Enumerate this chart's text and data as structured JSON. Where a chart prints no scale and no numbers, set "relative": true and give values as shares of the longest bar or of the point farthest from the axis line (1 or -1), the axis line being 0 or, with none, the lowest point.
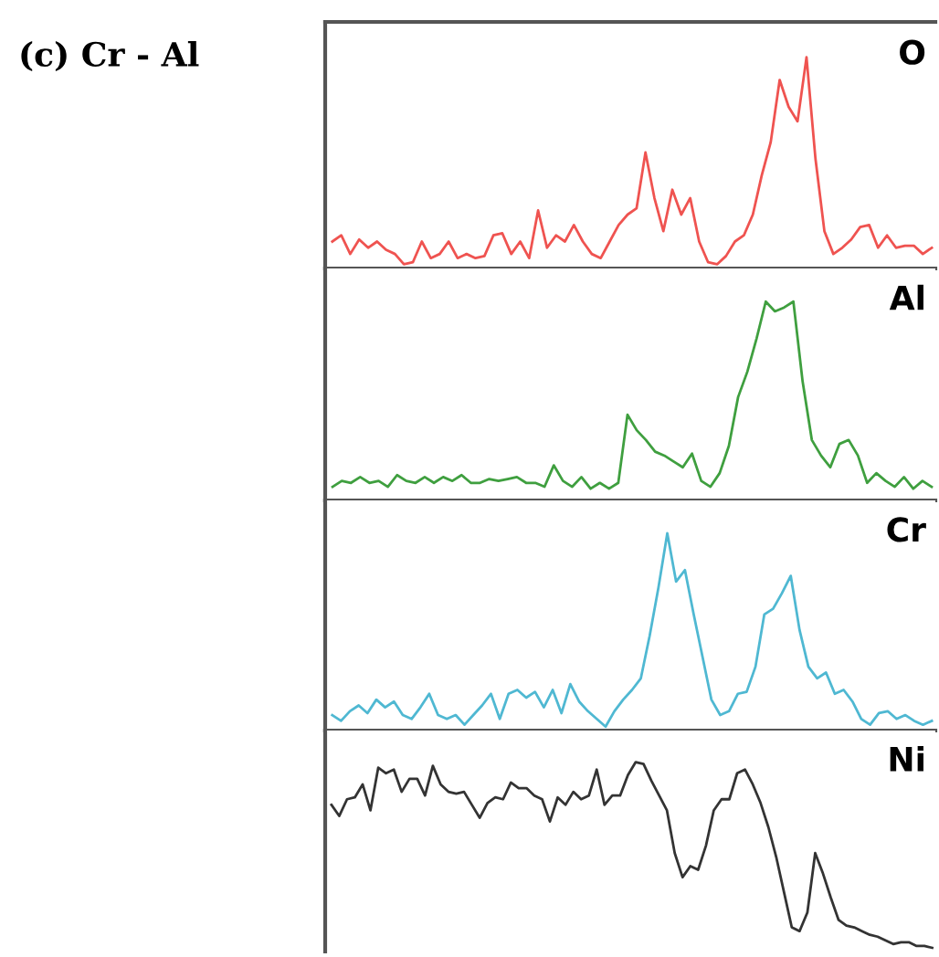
{
  "chart_data": [
    {
      "type": "line",
      "title": "(c) Cr - Al",
      "relative": true,
      "grid": false,
      "legend": false,
      "categories": [
        null,
        null,
        null,
        null,
        null,
        null,
        null,
        null,
        null,
        null,
        null,
        null,
        null,
        null,
        null,
        null,
        null,
        null,
        null,
        null,
        null,
        null,
        null,
        null,
        null,
        null,
        null,
        null,
        null,
        null,
        null,
        null,
        null,
        null,
        null,
        null,
        null,
        null,
        null,
        null,
        null,
        null,
        null,
        null,
        null,
        null,
        null,
        null,
        null,
        null,
        null,
        null,
        null,
        null,
        null,
        null,
        null,
        null,
        null,
        null,
        null,
        null,
        null,
        null,
        null,
        null,
        null,
        null
      ],
      "series": [
        {
          "name": "O",
          "color": "#ef5350",
          "values": [
            0.11,
            0.14,
            0.05,
            0.12,
            0.08,
            0.11,
            0.07,
            0.05,
            0,
            0.01,
            0.11,
            0.03,
            0.05,
            0.11,
            0.03,
            0.05,
            0.03,
            0.04,
            0.14,
            0.15,
            0.05,
            0.11,
            0.03,
            0.26,
            0.08,
            0.14,
            0.11,
            0.19,
            0.11,
            0.05,
            0.03,
            0.11,
            0.19,
            0.24,
            0.27,
            0.54,
            0.32,
            0.16,
            0.36,
            0.24,
            0.32,
            0.11,
            0.01,
            0,
            0.04,
            0.11,
            0.14,
            0.24,
            0.43,
            0.59,
            0.89,
            0.76,
            0.69,
            1,
            0.51,
            0.16,
            0.05,
            0.08,
            0.12,
            0.18,
            0.19,
            0.08,
            0.14,
            0.08,
            0.09,
            0.09,
            0.05,
            0.08
          ]
        }
      ]
    },
    {
      "type": "line",
      "relative": true,
      "grid": false,
      "legend": false,
      "categories": [
        null,
        null,
        null,
        null,
        null,
        null,
        null,
        null,
        null,
        null,
        null,
        null,
        null,
        null,
        null,
        null,
        null,
        null,
        null,
        null,
        null,
        null,
        null,
        null,
        null,
        null,
        null,
        null,
        null,
        null,
        null,
        null,
        null,
        null,
        null,
        null,
        null,
        null,
        null,
        null,
        null,
        null,
        null,
        null,
        null,
        null,
        null,
        null,
        null,
        null,
        null,
        null,
        null,
        null,
        null,
        null,
        null,
        null,
        null,
        null,
        null,
        null,
        null,
        null,
        null,
        null
      ],
      "series": [
        {
          "name": "Al",
          "color": "#3f9f3f",
          "values": [
            0.05,
            0.08,
            0.07,
            0.1,
            0.07,
            0.08,
            0.05,
            0.11,
            0.08,
            0.07,
            0.1,
            0.07,
            0.1,
            0.08,
            0.11,
            0.07,
            0.07,
            0.09,
            0.08,
            0.09,
            0.1,
            0.07,
            0.07,
            0.05,
            0.16,
            0.08,
            0.05,
            0.1,
            0.04,
            0.07,
            0.04,
            0.07,
            0.42,
            0.34,
            0.29,
            0.23,
            0.21,
            0.18,
            0.15,
            0.22,
            0.08,
            0.05,
            0.12,
            0.26,
            0.51,
            0.64,
            0.81,
            1,
            0.95,
            0.97,
            1,
            0.59,
            0.29,
            0.21,
            0.15,
            0.27,
            0.29,
            0.21,
            0.07,
            0.12,
            0.08,
            0.05,
            0.1,
            0.04,
            0.08,
            0.05
          ]
        }
      ]
    },
    {
      "type": "line",
      "relative": true,
      "grid": false,
      "legend": false,
      "categories": [
        null,
        null,
        null,
        null,
        null,
        null,
        null,
        null,
        null,
        null,
        null,
        null,
        null,
        null,
        null,
        null,
        null,
        null,
        null,
        null,
        null,
        null,
        null,
        null,
        null,
        null,
        null,
        null,
        null,
        null,
        null,
        null,
        null,
        null,
        null,
        null,
        null,
        null,
        null,
        null,
        null,
        null,
        null,
        null,
        null,
        null,
        null,
        null,
        null,
        null,
        null,
        null,
        null,
        null,
        null,
        null,
        null,
        null,
        null,
        null,
        null,
        null,
        null,
        null,
        null,
        null,
        null,
        null,
        null
      ],
      "series": [
        {
          "name": "Cr",
          "color": "#4fb8d2",
          "values": [
            0.06,
            0.03,
            0.08,
            0.11,
            0.07,
            0.14,
            0.1,
            0.13,
            0.06,
            0.04,
            0.1,
            0.17,
            0.06,
            0.04,
            0.06,
            0.01,
            0.06,
            0.11,
            0.17,
            0.04,
            0.17,
            0.19,
            0.15,
            0.18,
            0.1,
            0.19,
            0.07,
            0.22,
            0.13,
            0.08,
            0.04,
            0,
            0.08,
            0.14,
            0.19,
            0.25,
            0.47,
            0.72,
            1,
            0.75,
            0.81,
            0.58,
            0.36,
            0.14,
            0.06,
            0.08,
            0.17,
            0.18,
            0.31,
            0.58,
            0.61,
            0.69,
            0.78,
            0.5,
            0.31,
            0.25,
            0.28,
            0.17,
            0.19,
            0.13,
            0.04,
            0.01,
            0.07,
            0.08,
            0.04,
            0.06,
            0.03,
            0.01,
            0.03
          ]
        }
      ]
    },
    {
      "type": "line",
      "relative": true,
      "grid": false,
      "legend": false,
      "categories": [
        null,
        null,
        null,
        null,
        null,
        null,
        null,
        null,
        null,
        null,
        null,
        null,
        null,
        null,
        null,
        null,
        null,
        null,
        null,
        null,
        null,
        null,
        null,
        null,
        null,
        null,
        null,
        null,
        null,
        null,
        null,
        null,
        null,
        null,
        null,
        null,
        null,
        null,
        null,
        null,
        null,
        null,
        null,
        null,
        null,
        null,
        null,
        null,
        null,
        null,
        null,
        null,
        null,
        null,
        null,
        null,
        null,
        null,
        null,
        null,
        null,
        null,
        null,
        null,
        null,
        null,
        null,
        null,
        null,
        null,
        null,
        null,
        null,
        null,
        null,
        null,
        null,
        null
      ],
      "series": [
        {
          "name": "Ni",
          "color": "#333333",
          "values": [
            0.77,
            0.71,
            0.8,
            0.81,
            0.88,
            0.74,
            0.97,
            0.94,
            0.96,
            0.84,
            0.91,
            0.91,
            0.82,
            0.98,
            0.88,
            0.84,
            0.83,
            0.84,
            0.77,
            0.7,
            0.78,
            0.81,
            0.8,
            0.89,
            0.86,
            0.86,
            0.82,
            0.8,
            0.68,
            0.81,
            0.77,
            0.84,
            0.8,
            0.82,
            0.96,
            0.77,
            0.82,
            0.82,
            0.93,
            1,
            0.99,
            0.9,
            0.82,
            0.74,
            0.51,
            0.38,
            0.44,
            0.42,
            0.55,
            0.74,
            0.8,
            0.8,
            0.94,
            0.96,
            0.88,
            0.78,
            0.65,
            0.49,
            0.3,
            0.11,
            0.09,
            0.19,
            0.51,
            0.4,
            0.27,
            0.15,
            0.12,
            0.11,
            0.09,
            0.07,
            0.06,
            0.04,
            0.02,
            0.03,
            0.03,
            0.01,
            0.01,
            0
          ]
        }
      ]
    }
  ]
}
